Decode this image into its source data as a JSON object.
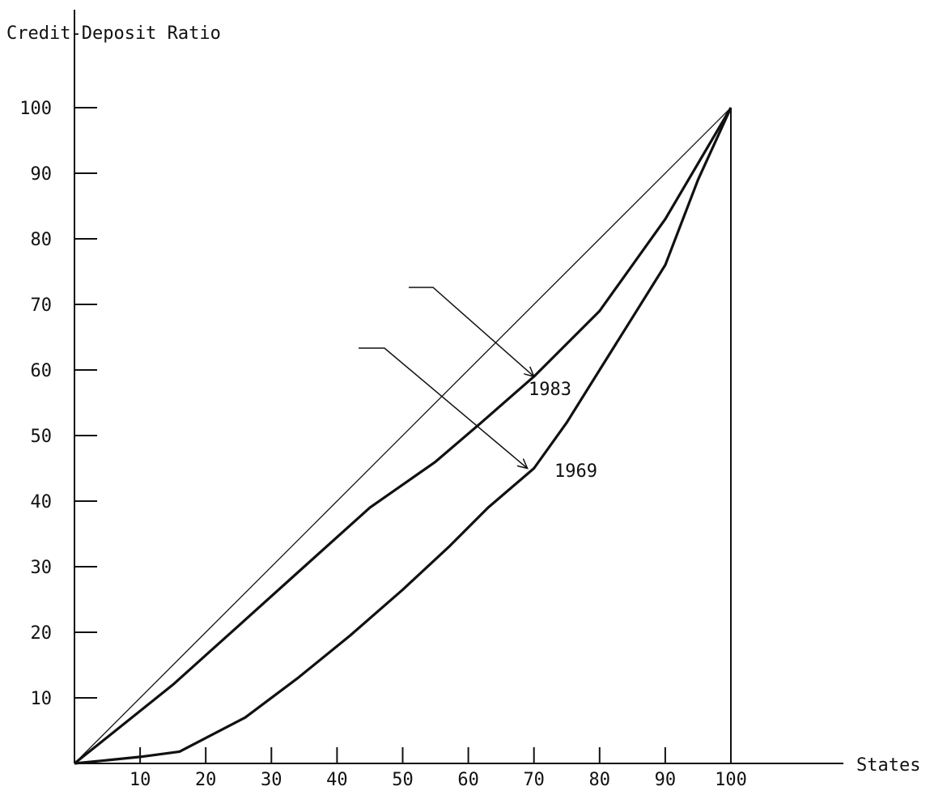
{
  "chart_data": {
    "type": "line",
    "ylabel": "Credit-Deposit Ratio",
    "xlabel": "States",
    "xlim": [
      0,
      100
    ],
    "ylim": [
      0,
      100
    ],
    "x_ticks": [
      10,
      20,
      30,
      40,
      50,
      60,
      70,
      80,
      90,
      100
    ],
    "y_ticks": [
      10,
      20,
      30,
      40,
      50,
      60,
      70,
      80,
      90,
      100
    ],
    "equality_line": {
      "x": [
        0,
        100
      ],
      "y": [
        0,
        100
      ]
    },
    "series": [
      {
        "name": "1983",
        "x": [
          0,
          5,
          15,
          25,
          35,
          45,
          55,
          62,
          70,
          80,
          90,
          100
        ],
        "y": [
          0,
          4,
          12,
          21,
          30,
          39,
          46,
          52,
          59,
          69,
          83,
          100
        ]
      },
      {
        "name": "1969",
        "x": [
          0,
          5,
          10,
          16,
          26,
          34,
          42,
          50,
          57,
          63,
          70,
          75,
          80,
          85,
          90,
          95,
          100
        ],
        "y": [
          0,
          0.5,
          1,
          1.8,
          7,
          13,
          19.5,
          26.5,
          33,
          39,
          45,
          52,
          60,
          68,
          76,
          89,
          100
        ]
      }
    ],
    "annotations": [
      {
        "text": "1983",
        "points_to": [
          70,
          59
        ]
      },
      {
        "text": "1969",
        "points_to": [
          69,
          45
        ]
      }
    ],
    "grid": false,
    "legend": "none"
  }
}
